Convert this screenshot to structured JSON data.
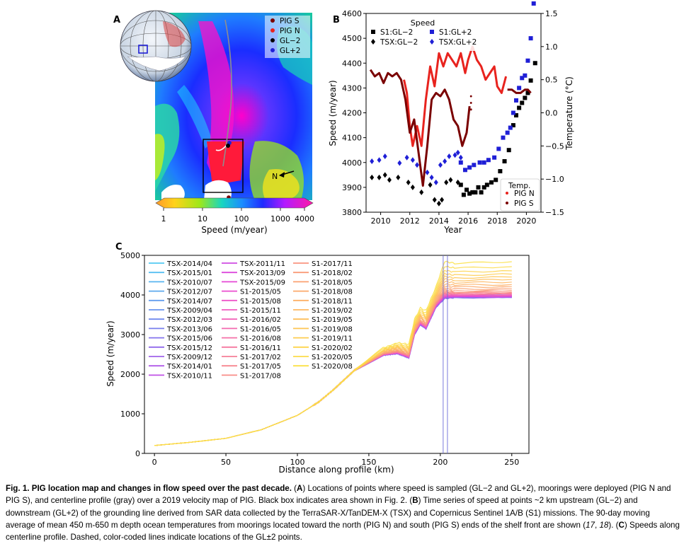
{
  "panel_labels": {
    "a": "A",
    "b": "B",
    "c": "C"
  },
  "panel_a": {
    "legend": [
      {
        "label": "PIG S",
        "color": "#7a0000"
      },
      {
        "label": "PIG N",
        "color": "#e8231e"
      },
      {
        "label": "GL−2",
        "color": "#000000"
      },
      {
        "label": "GL+2",
        "color": "#1f1fd6"
      }
    ],
    "colorbar_ticks": [
      "1",
      "10",
      "100",
      "1000",
      "4000"
    ],
    "colorbar_label": "Speed (m/year)",
    "north_label": "N"
  },
  "chart_data": [
    {
      "panel": "B",
      "type": "scatter",
      "title": "",
      "xlabel": "Year",
      "ylabel": "Speed (m/year)",
      "y2label": "Temperature (°C)",
      "xlim": [
        2009,
        2021
      ],
      "ylim": [
        3800,
        4600
      ],
      "y2lim": [
        -1.5,
        1.5
      ],
      "xticks": [
        "2010",
        "2012",
        "2014",
        "2016",
        "2018",
        "2020"
      ],
      "yticks": [
        "3800",
        "3900",
        "4000",
        "4100",
        "4200",
        "4300",
        "4400",
        "4500",
        "4600"
      ],
      "y2ticks": [
        "−1.5",
        "−1.0",
        "−0.5",
        "0.0",
        "0.5",
        "1.0",
        "1.5"
      ],
      "speed_legend_title": "Speed",
      "temp_legend_title": "Temp.",
      "series": [
        {
          "name": "S1:GL−2",
          "marker": "square",
          "color": "#000000",
          "x": [
            2015.5,
            2015.7,
            2015.9,
            2016.1,
            2016.3,
            2016.5,
            2016.7,
            2016.9,
            2017.1,
            2017.3,
            2017.6,
            2017.9,
            2018.2,
            2018.5,
            2018.8,
            2019.1,
            2019.3,
            2019.5,
            2019.7,
            2019.9,
            2020.1,
            2020.3,
            2020.6
          ],
          "y": [
            3910,
            3870,
            3890,
            3875,
            3880,
            3880,
            3900,
            3880,
            3900,
            3910,
            3920,
            3930,
            3965,
            4005,
            4050,
            4150,
            4190,
            4220,
            4240,
            4260,
            4280,
            4330,
            4400
          ]
        },
        {
          "name": "TSX:GL−2",
          "marker": "diamond",
          "color": "#000000",
          "x": [
            2009.4,
            2009.9,
            2010.3,
            2010.6,
            2011.2,
            2011.9,
            2012.2,
            2012.8,
            2013.4,
            2013.7,
            2014.0,
            2014.2,
            2014.5,
            2014.8,
            2015.3
          ],
          "y": [
            3940,
            3940,
            3950,
            3930,
            3940,
            3920,
            3900,
            3880,
            3910,
            3850,
            3835,
            3850,
            3920,
            3930,
            3920
          ]
        },
        {
          "name": "S1:GL+2",
          "marker": "square",
          "color": "#1f1fd6",
          "x": [
            2015.5,
            2015.8,
            2016.1,
            2016.4,
            2016.8,
            2017.1,
            2017.4,
            2017.8,
            2018.1,
            2018.4,
            2018.7,
            2018.9,
            2019.1,
            2019.3,
            2019.5,
            2019.7,
            2019.9,
            2020.1,
            2020.3,
            2020.5
          ],
          "y": [
            4000,
            3970,
            3980,
            3990,
            4000,
            4000,
            4010,
            4020,
            4055,
            4100,
            4120,
            4140,
            4200,
            4250,
            4300,
            4340,
            4350,
            4410,
            4500,
            4640
          ]
        },
        {
          "name": "TSX:GL+2",
          "marker": "diamond",
          "color": "#1f1fd6",
          "x": [
            2009.4,
            2009.9,
            2010.3,
            2011.3,
            2011.8,
            2012.2,
            2012.5,
            2013.2,
            2013.5,
            2013.8,
            2014.1,
            2014.4,
            2014.7,
            2015.1,
            2015.3,
            2015.5
          ],
          "y": [
            4005,
            4010,
            4025,
            3998,
            4020,
            4010,
            3990,
            3960,
            3940,
            3920,
            3990,
            4005,
            4025,
            4030,
            4040,
            4020
          ]
        },
        {
          "name": "PIG N",
          "marker": "dot",
          "color": "#e8231e",
          "axis": "temperature",
          "x": [
            2011.6,
            2011.8,
            2012.0,
            2012.2,
            2012.5,
            2012.8,
            2013.1,
            2013.4,
            2013.7,
            2014.0,
            2014.3,
            2014.6,
            2014.9,
            2015.2,
            2015.5,
            2015.8,
            2016.0,
            2016.3,
            2016.6,
            2016.9,
            2017.2,
            2017.5,
            2017.8,
            2018.0,
            2018.3,
            2018.6
          ],
          "y": [
            0.5,
            0.3,
            -0.2,
            -0.5,
            -0.2,
            -0.5,
            0.2,
            0.7,
            0.4,
            0.9,
            0.7,
            0.9,
            0.8,
            0.7,
            0.9,
            0.6,
            0.8,
            1.0,
            0.8,
            0.7,
            0.5,
            0.6,
            0.7,
            0.4,
            0.3,
            0.55
          ]
        },
        {
          "name": "PIG S",
          "marker": "dot",
          "color": "#7a0000",
          "axis": "temperature",
          "x": [
            2009.3,
            2009.6,
            2009.9,
            2010.2,
            2010.5,
            2010.8,
            2011.1,
            2011.4,
            2011.7,
            2012.0,
            2012.3,
            2012.6,
            2012.9,
            2013.2,
            2013.5,
            2013.8,
            2014.1,
            2014.4,
            2014.7,
            2015.0,
            2015.3,
            2015.6,
            2015.9,
            2016.1
          ],
          "y": [
            0.65,
            0.55,
            0.6,
            0.45,
            0.6,
            0.55,
            0.6,
            0.5,
            0.2,
            -0.3,
            -0.1,
            -0.6,
            -1.1,
            -0.5,
            0.2,
            0.3,
            0.25,
            0.35,
            0.2,
            -0.1,
            -0.2,
            -0.5,
            -0.3,
            0.1
          ]
        }
      ],
      "temp_extra": [
        {
          "name": "PIG S (2019)",
          "color": "#7a0000",
          "x": [
            2018.7,
            2019.0,
            2019.3,
            2019.6,
            2019.9,
            2020.1,
            2020.3
          ],
          "y": [
            0.35,
            0.35,
            0.3,
            0.3,
            0.35,
            0.35,
            0.3
          ]
        },
        {
          "name": "PIG S (2016 dots)",
          "color": "#7a0000",
          "x": [
            2016.2,
            2016.2,
            2016.2,
            2016.2
          ],
          "y": [
            0.05,
            0.05,
            0.15,
            0.25
          ]
        }
      ]
    },
    {
      "panel": "C",
      "type": "line",
      "title": "",
      "xlabel": "Distance along profile (km)",
      "ylabel": "Speed (m/year)",
      "xlim": [
        -7,
        262
      ],
      "ylim": [
        0,
        5000
      ],
      "xticks": [
        "0",
        "50",
        "100",
        "150",
        "200",
        "250"
      ],
      "yticks": [
        "0",
        "1000",
        "2000",
        "3000",
        "4000",
        "5000"
      ],
      "gl_lines": [
        202,
        205
      ],
      "base_profile": {
        "x": [
          0,
          25,
          50,
          75,
          100,
          115,
          125,
          140,
          160,
          170,
          178,
          182,
          186,
          190,
          197,
          203,
          210,
          250
        ],
        "y": [
          200,
          280,
          380,
          600,
          960,
          1300,
          1600,
          2100,
          2500,
          2550,
          2450,
          3050,
          3300,
          3200,
          3750,
          4000,
          4000,
          4000
        ]
      },
      "series": [
        {
          "name": "TSX-2014/04",
          "color": "#52c9f2",
          "end": 3995
        },
        {
          "name": "TSX-2015/01",
          "color": "#56bff2",
          "end": 3985
        },
        {
          "name": "TSX-2010/07",
          "color": "#5ab5f0",
          "end": 3990
        },
        {
          "name": "TSX-2012/07",
          "color": "#5fa9ee",
          "end": 3980
        },
        {
          "name": "TSX-2014/07",
          "color": "#649eee",
          "end": 3975
        },
        {
          "name": "TSX-2009/04",
          "color": "#6994ee",
          "end": 3960
        },
        {
          "name": "TSX-2012/03",
          "color": "#7089ee",
          "end": 3950
        },
        {
          "name": "TSX-2013/06",
          "color": "#787fee",
          "end": 3940
        },
        {
          "name": "TSX-2015/06",
          "color": "#8474ee",
          "end": 3935
        },
        {
          "name": "TSX-2015/12",
          "color": "#9169ec",
          "end": 3940
        },
        {
          "name": "TSX-2009/12",
          "color": "#a062ea",
          "end": 3945
        },
        {
          "name": "TSX-2014/01",
          "color": "#b05ae8",
          "end": 3950
        },
        {
          "name": "TSX-2010/11",
          "color": "#c052e6",
          "end": 3960
        },
        {
          "name": "TSX-2011/11",
          "color": "#cf4ce2",
          "end": 3965
        },
        {
          "name": "TSX-2013/09",
          "color": "#dc48dc",
          "end": 3970
        },
        {
          "name": "TSX-2015/09",
          "color": "#e649d6",
          "end": 3975
        },
        {
          "name": "S1-2015/05",
          "color": "#eb4ecf",
          "end": 3980
        },
        {
          "name": "S1-2015/08",
          "color": "#ee55c8",
          "end": 3985
        },
        {
          "name": "S1-2015/11",
          "color": "#f05cc0",
          "end": 3990
        },
        {
          "name": "S1-2016/02",
          "color": "#f263b8",
          "end": 4000
        },
        {
          "name": "S1-2016/05",
          "color": "#f36ab0",
          "end": 4010
        },
        {
          "name": "S1-2016/08",
          "color": "#f471a8",
          "end": 4020
        },
        {
          "name": "S1-2016/11",
          "color": "#f5789f",
          "end": 4030
        },
        {
          "name": "S1-2017/02",
          "color": "#f67f97",
          "end": 4040
        },
        {
          "name": "S1-2017/05",
          "color": "#f7868f",
          "end": 4050
        },
        {
          "name": "S1-2017/08",
          "color": "#f88d88",
          "end": 4060
        },
        {
          "name": "S1-2017/11",
          "color": "#f99480",
          "end": 4080
        },
        {
          "name": "S1-2018/02",
          "color": "#fa9b78",
          "end": 4110
        },
        {
          "name": "S1-2018/05",
          "color": "#fba272",
          "end": 4150
        },
        {
          "name": "S1-2018/08",
          "color": "#fca96c",
          "end": 4200
        },
        {
          "name": "S1-2018/11",
          "color": "#fdb066",
          "end": 4250
        },
        {
          "name": "S1-2019/02",
          "color": "#feb760",
          "end": 4310
        },
        {
          "name": "S1-2019/05",
          "color": "#febe5a",
          "end": 4370
        },
        {
          "name": "S1-2019/08",
          "color": "#fec654",
          "end": 4430
        },
        {
          "name": "S1-2019/11",
          "color": "#fecd50",
          "end": 4500
        },
        {
          "name": "S1-2020/02",
          "color": "#fdd44c",
          "end": 4580
        },
        {
          "name": "S1-2020/05",
          "color": "#fcdb49",
          "end": 4680
        },
        {
          "name": "S1-2020/08",
          "color": "#fbe146",
          "end": 4800
        }
      ]
    }
  ],
  "caption": {
    "title": "Fig. 1. PIG location map and changes in flow speed over the past decade.",
    "a_label": "A",
    "a_text": " Locations of points where speed is sampled (GL−2 and GL+2), moorings were deployed (PIG N and PIG S), and centerline profile (gray) over a 2019 velocity map of PIG. Black box indicates area shown in Fig. 2.",
    "b_label": "B",
    "b_text": " Time series of speed at points ~2 km upstream (GL−2) and downstream (GL+2) of the grounding line derived from SAR data collected by the TerraSAR-X/TanDEM-X (TSX) and Copernicus Sentinel 1A/B (S1) missions. The 90-day moving average of mean 450 m-650 m depth ocean temperatures from moorings located toward the north (PIG N) and south (PIG S) ends of the shelf front are shown (",
    "ref_1": "17",
    "ref_sep": ", ",
    "ref_2": "18",
    "b_end": ").",
    "c_label": "C",
    "c_text": " Speeds along centerline profile. Dashed, color-coded lines indicate locations of the GL±2 points."
  }
}
